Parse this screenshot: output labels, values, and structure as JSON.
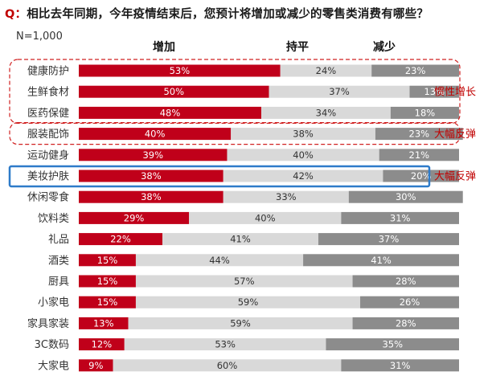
{
  "header": {
    "prefix": "Q：",
    "question": "相比去年同期，今年疫情结束后，您预计将增加或减少的零售类消费有哪些？",
    "sample": "N=1,000"
  },
  "chart_data": {
    "type": "bar",
    "stacked": true,
    "orientation": "horizontal",
    "value_unit": "%",
    "categories": [
      "健康防护",
      "生鲜食材",
      "医药保健",
      "服装配饰",
      "运动健身",
      "美妆护肤",
      "休闲零食",
      "饮料类",
      "礼品",
      "酒类",
      "厨具",
      "小家电",
      "家具家装",
      "3C数码",
      "大家电"
    ],
    "series": [
      {
        "name": "增加",
        "color": "#c0001a",
        "values": [
          53,
          50,
          48,
          40,
          39,
          38,
          38,
          29,
          22,
          15,
          15,
          15,
          13,
          12,
          9
        ]
      },
      {
        "name": "持平",
        "color": "#d9d9d9",
        "values": [
          24,
          37,
          34,
          38,
          40,
          42,
          33,
          40,
          41,
          44,
          57,
          59,
          59,
          53,
          60
        ]
      },
      {
        "name": "减少",
        "color": "#8c8c8c",
        "values": [
          23,
          13,
          18,
          23,
          21,
          20,
          30,
          31,
          37,
          41,
          28,
          26,
          28,
          35,
          31
        ]
      }
    ],
    "annotations": [
      {
        "label": "惯性增长",
        "rows": [
          0,
          1,
          2
        ],
        "style": "dashed-red"
      },
      {
        "label": "大幅反弹",
        "rows": [
          3
        ],
        "style": "dashed-red"
      },
      {
        "label": "大幅反弹",
        "rows": [
          5
        ],
        "style": "solid-blue"
      }
    ]
  }
}
